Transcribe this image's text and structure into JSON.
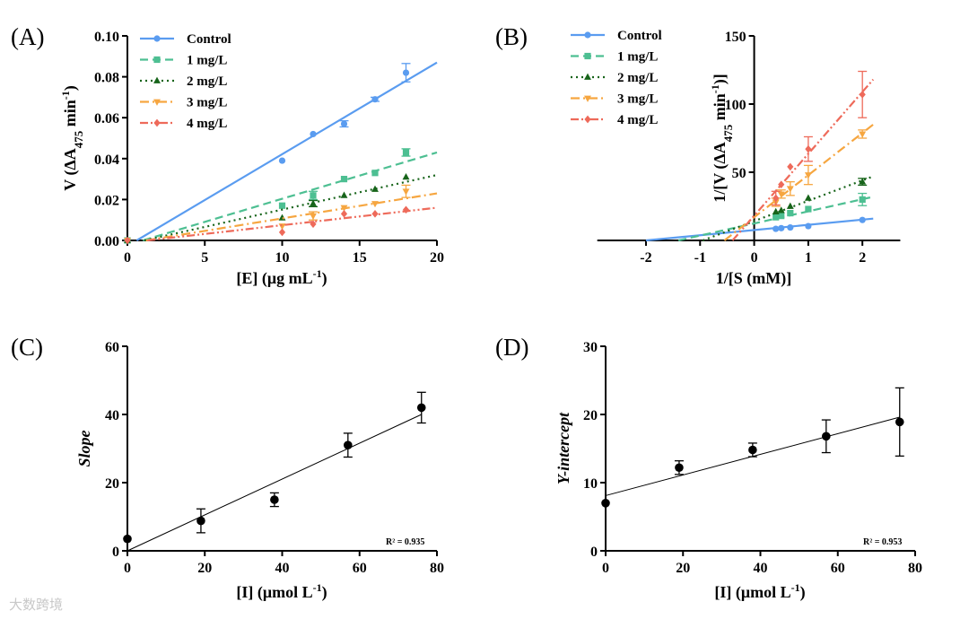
{
  "watermark": "大数跨境",
  "chart_data": [
    {
      "panel": "(A)",
      "type": "line+scatter",
      "xlabel": [
        {
          "t": "[E] (μg mL"
        },
        {
          "t": "-1",
          "sup": true
        },
        {
          "t": ")"
        }
      ],
      "ylabel": [
        {
          "t": "V (ΔA"
        },
        {
          "t": "475",
          "sub": true
        },
        {
          "t": " min"
        },
        {
          "t": "-1",
          "sup": true
        },
        {
          "t": ")"
        }
      ],
      "xlim": [
        0,
        20
      ],
      "ylim": [
        0,
        0.1
      ],
      "xticks": [
        0,
        5,
        10,
        15,
        20
      ],
      "xtick_labels": [
        "0",
        "5",
        "10",
        "15",
        "20"
      ],
      "yticks": [
        0,
        0.02,
        0.04,
        0.06,
        0.08,
        0.1
      ],
      "ytick_labels": [
        "0.00",
        "0.02",
        "0.04",
        "0.06",
        "0.08",
        "0.10"
      ],
      "legend_position": "top-left",
      "series": [
        {
          "name": "Control",
          "color": "#5a9cf0",
          "marker": "circle",
          "dash": "solid",
          "x": [
            0,
            10,
            12,
            14,
            16,
            18
          ],
          "y": [
            0,
            0.039,
            0.052,
            0.057,
            0.069,
            0.082
          ],
          "err": [
            0,
            0,
            0,
            0.0015,
            0.001,
            0.0045
          ],
          "fit": [
            [
              0.6,
              0
            ],
            [
              20,
              0.087
            ]
          ]
        },
        {
          "name": "1 mg/L",
          "color": "#4dbf92",
          "marker": "square",
          "dash": "dashed",
          "x": [
            0,
            10,
            12,
            14,
            16,
            18
          ],
          "y": [
            0,
            0.017,
            0.022,
            0.03,
            0.033,
            0.043
          ],
          "err": [
            0,
            0,
            0.002,
            0,
            0,
            0.0018
          ],
          "fit": [
            [
              1.0,
              0
            ],
            [
              20,
              0.043
            ]
          ]
        },
        {
          "name": "2 mg/L",
          "color": "#17641a",
          "marker": "triangle-up",
          "dash": "dotted",
          "x": [
            0,
            10,
            12,
            14,
            16,
            18
          ],
          "y": [
            0,
            0.011,
            0.018,
            0.022,
            0.025,
            0.031
          ],
          "err": [
            0,
            0,
            0.0015,
            0,
            0,
            0
          ],
          "fit": [
            [
              1.1,
              0
            ],
            [
              20,
              0.032
            ]
          ]
        },
        {
          "name": "3 mg/L",
          "color": "#f6a640",
          "marker": "triangle-down",
          "dash": "dash-dot",
          "x": [
            0,
            10,
            12,
            14,
            16,
            18
          ],
          "y": [
            0,
            0.007,
            0.012,
            0.016,
            0.018,
            0.024
          ],
          "err": [
            0,
            0,
            0.002,
            0,
            0,
            0.003
          ],
          "fit": [
            [
              1.2,
              0
            ],
            [
              20,
              0.023
            ]
          ]
        },
        {
          "name": "4 mg/L",
          "color": "#ee6a5a",
          "marker": "diamond",
          "dash": "dash-dot-dot",
          "x": [
            0,
            10,
            12,
            14,
            16,
            18
          ],
          "y": [
            0,
            0.004,
            0.008,
            0.013,
            0.013,
            0.015
          ],
          "err": [
            0,
            0,
            0,
            0,
            0,
            0
          ],
          "fit": [
            [
              1.3,
              0
            ],
            [
              20,
              0.016
            ]
          ]
        }
      ]
    },
    {
      "panel": "(B)",
      "type": "line+scatter",
      "xlabel": [
        {
          "t": "1/[S (mM)]"
        }
      ],
      "ylabel": [
        {
          "t": "1/[V (ΔA"
        },
        {
          "t": "475",
          "sub": true
        },
        {
          "t": " min"
        },
        {
          "t": "-1",
          "sup": true
        },
        {
          "t": ")]"
        }
      ],
      "xlim": [
        -2.9,
        2.7
      ],
      "ylim": [
        0,
        150
      ],
      "xticks": [
        -2,
        -1,
        0,
        1,
        2
      ],
      "xtick_labels": [
        "-2",
        "-1",
        "0",
        "1",
        "2"
      ],
      "yticks": [
        50,
        100,
        150
      ],
      "ytick_labels": [
        "50",
        "100",
        "150"
      ],
      "legend_position": "top-left",
      "series": [
        {
          "name": "Control",
          "color": "#5a9cf0",
          "marker": "circle",
          "dash": "solid",
          "x": [
            0.4,
            0.5,
            0.667,
            1,
            2
          ],
          "y": [
            8.5,
            9,
            9.5,
            10.5,
            15
          ],
          "err": [
            0,
            0,
            0,
            0,
            0
          ],
          "fit": [
            [
              -2,
              0
            ],
            [
              2.2,
              16
            ]
          ]
        },
        {
          "name": "1 mg/L",
          "color": "#4dbf92",
          "marker": "square",
          "dash": "dashed",
          "x": [
            0.4,
            0.5,
            0.667,
            1,
            2
          ],
          "y": [
            17,
            18,
            20,
            23,
            30
          ],
          "err": [
            0,
            0,
            0,
            0,
            4.5
          ],
          "fit": [
            [
              -1.4,
              0
            ],
            [
              2.2,
              32
            ]
          ]
        },
        {
          "name": "2 mg/L",
          "color": "#17641a",
          "marker": "triangle-up",
          "dash": "dotted",
          "x": [
            0.4,
            0.5,
            0.667,
            1,
            2
          ],
          "y": [
            21,
            22,
            25,
            31,
            43
          ],
          "err": [
            0,
            0,
            0,
            0,
            2.5
          ],
          "fit": [
            [
              -0.95,
              0
            ],
            [
              2.2,
              47
            ]
          ]
        },
        {
          "name": "3 mg/L",
          "color": "#f6a640",
          "marker": "triangle-down",
          "dash": "dash-dot",
          "x": [
            0.4,
            0.5,
            0.667,
            1,
            2
          ],
          "y": [
            28,
            34,
            38,
            48,
            78
          ],
          "err": [
            3,
            3,
            5,
            7,
            3
          ],
          "fit": [
            [
              -0.55,
              0
            ],
            [
              2.2,
              85
            ]
          ]
        },
        {
          "name": "4 mg/L",
          "color": "#ee6a5a",
          "marker": "diamond",
          "dash": "dash-dot-dot",
          "x": [
            0.4,
            0.5,
            0.667,
            1,
            2
          ],
          "y": [
            31,
            41,
            54,
            67,
            107
          ],
          "err": [
            5,
            0,
            0,
            9,
            17
          ],
          "fit": [
            [
              -0.4,
              0
            ],
            [
              2.2,
              118
            ]
          ]
        }
      ]
    },
    {
      "panel": "(C)",
      "type": "scatter",
      "xlabel": [
        {
          "t": "[I] (μmol L"
        },
        {
          "t": "-1",
          "sup": true
        },
        {
          "t": ")"
        }
      ],
      "ylabel": [
        {
          "t": "Slope",
          "italic": true
        }
      ],
      "xlim": [
        0,
        80
      ],
      "ylim": [
        0,
        60
      ],
      "xticks": [
        0,
        20,
        40,
        60,
        80
      ],
      "xtick_labels": [
        "0",
        "20",
        "40",
        "60",
        "80"
      ],
      "yticks": [
        0,
        20,
        40,
        60
      ],
      "ytick_labels": [
        "0",
        "20",
        "40",
        "60"
      ],
      "annotation": "R² = 0.935",
      "series": [
        {
          "name": "Slope",
          "color": "#000000",
          "marker": "circle",
          "dash": "solid",
          "x": [
            0,
            19,
            38,
            57,
            76
          ],
          "y": [
            3.5,
            8.8,
            15,
            31,
            42
          ],
          "err": [
            0,
            3.5,
            2,
            3.5,
            4.5
          ],
          "fit": [
            [
              0,
              0
            ],
            [
              76,
              40
            ]
          ]
        }
      ]
    },
    {
      "panel": "(D)",
      "type": "scatter",
      "xlabel": [
        {
          "t": "[I] (μmol L"
        },
        {
          "t": "-1",
          "sup": true
        },
        {
          "t": ")"
        }
      ],
      "ylabel": [
        {
          "t": "Y-intercept",
          "italic": true
        }
      ],
      "xlim": [
        0,
        80
      ],
      "ylim": [
        0,
        30
      ],
      "xticks": [
        0,
        20,
        40,
        60,
        80
      ],
      "xtick_labels": [
        "0",
        "20",
        "40",
        "60",
        "80"
      ],
      "yticks": [
        0,
        10,
        20,
        30
      ],
      "ytick_labels": [
        "0",
        "10",
        "20",
        "30"
      ],
      "annotation": "R² = 0.953",
      "series": [
        {
          "name": "Y-intercept",
          "color": "#000000",
          "marker": "circle",
          "dash": "solid",
          "x": [
            0,
            19,
            38,
            57,
            76
          ],
          "y": [
            7,
            12.2,
            14.8,
            16.8,
            18.9
          ],
          "err": [
            0,
            1,
            1,
            2.4,
            5
          ],
          "fit": [
            [
              0,
              8.1
            ],
            [
              76,
              19.6
            ]
          ]
        }
      ]
    }
  ]
}
